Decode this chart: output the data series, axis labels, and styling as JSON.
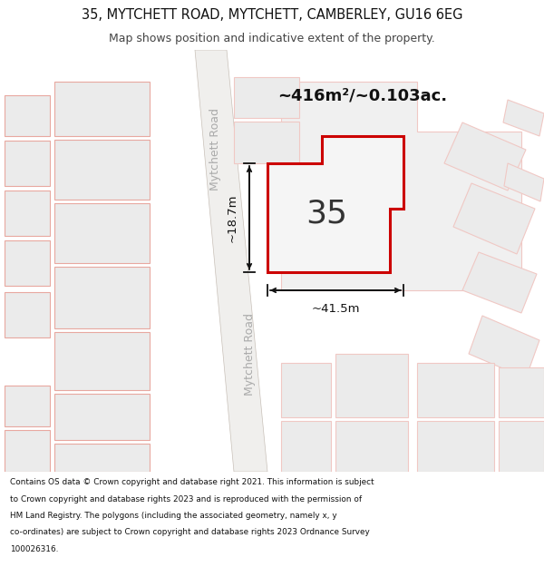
{
  "title_line1": "35, MYTCHETT ROAD, MYTCHETT, CAMBERLEY, GU16 6EG",
  "title_line2": "Map shows position and indicative extent of the property.",
  "footer_lines": [
    "Contains OS data © Crown copyright and database right 2021. This information is subject",
    "to Crown copyright and database rights 2023 and is reproduced with the permission of",
    "HM Land Registry. The polygons (including the associated geometry, namely x, y",
    "co-ordinates) are subject to Crown copyright and database rights 2023 Ordnance Survey",
    "100026316."
  ],
  "area_text": "~416m²/~0.103ac.",
  "number_text": "35",
  "dim_width": "~41.5m",
  "dim_height": "~18.7m",
  "map_bg": "#f5f4f2",
  "road_fill": "#f0efed",
  "road_edge": "#c8c0b8",
  "building_fill": "#ebebeb",
  "building_stroke": "#e8a8a0",
  "building_stroke_light": "#f0c8c4",
  "plot_fill": "#f5f5f5",
  "plot_outline": "#cc0000",
  "title_bg": "#ffffff",
  "footer_bg": "#ffffff",
  "text_dark": "#111111",
  "text_mid": "#aaaaaa",
  "arrow_color": "#111111"
}
